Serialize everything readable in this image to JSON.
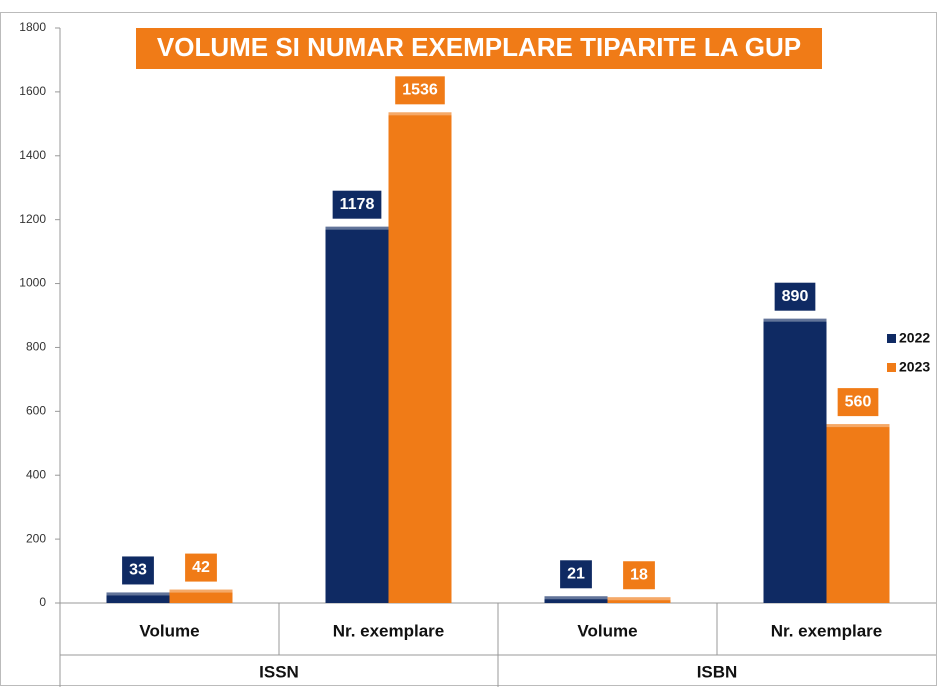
{
  "chart_data": {
    "type": "bar",
    "title": "VOLUME SI NUMAR EXEMPLARE TIPARITE LA GUP",
    "categories": [
      "Volume",
      "Nr. exemplare",
      "Volume",
      "Nr. exemplare"
    ],
    "category_groups": [
      "ISSN",
      "ISBN"
    ],
    "series": [
      {
        "name": "2022",
        "color": "#0f2a63",
        "values": [
          33,
          1178,
          21,
          890
        ]
      },
      {
        "name": "2023",
        "color": "#f07b17",
        "values": [
          42,
          1536,
          18,
          560
        ]
      }
    ],
    "ylim": [
      0,
      1800
    ],
    "yticks": [
      0,
      200,
      400,
      600,
      800,
      1000,
      1200,
      1400,
      1600,
      1800
    ],
    "grid": false,
    "legend": "right",
    "title_color": "#f07b17"
  }
}
